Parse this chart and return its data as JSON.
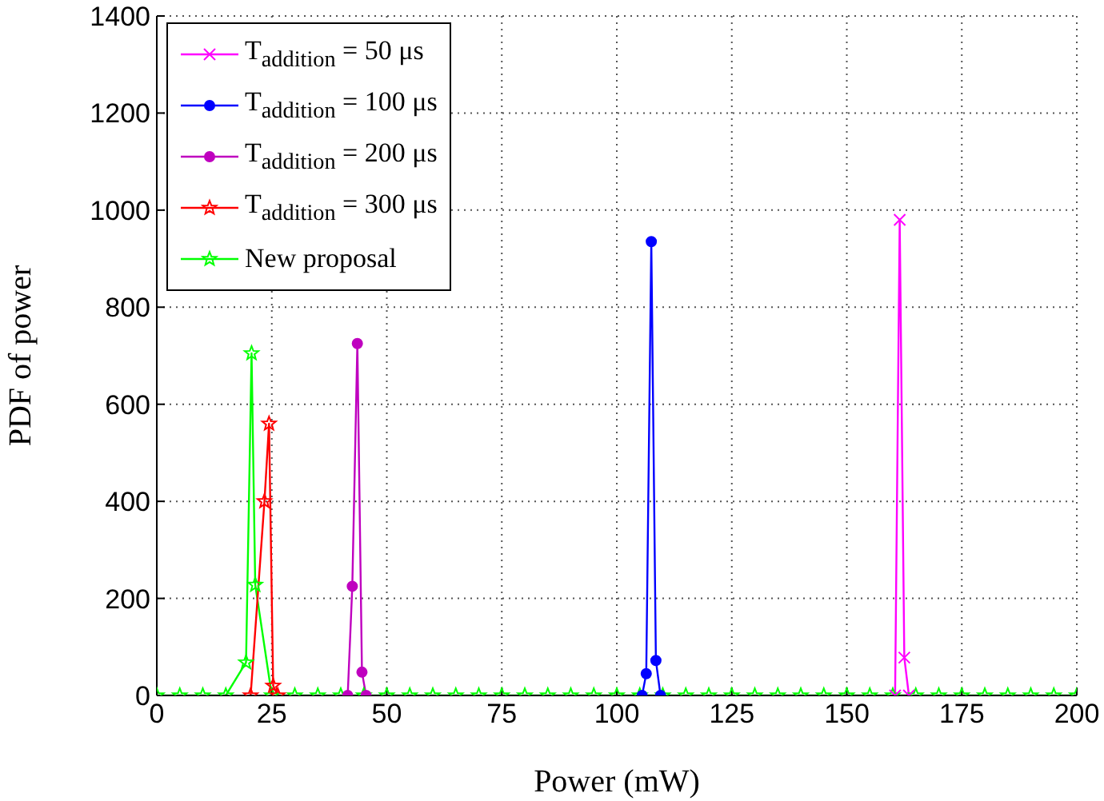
{
  "chart_data": {
    "type": "line",
    "xlabel": "Power (mW)",
    "ylabel": "PDF of power",
    "xlim": [
      0,
      200
    ],
    "ylim": [
      0,
      1400
    ],
    "xticks": [
      0,
      25,
      50,
      75,
      100,
      125,
      150,
      175,
      200
    ],
    "yticks": [
      0,
      200,
      400,
      600,
      800,
      1000,
      1200,
      1400
    ],
    "grid": true,
    "legend": "top left",
    "line_style": "solid",
    "series": [
      {
        "name": "T$_{addition}$ = 50 μs",
        "color": "#ff00ff",
        "marker": "cross",
        "x": [
          160.5,
          161.5,
          162.5,
          163.5
        ],
        "values": [
          0,
          980,
          78,
          0
        ]
      },
      {
        "name": "T$_{addition}$ = 100 μs",
        "color": "#0000ff",
        "marker": "circle",
        "x": [
          105.5,
          106.4,
          107.5,
          108.5,
          109.5
        ],
        "values": [
          0,
          45,
          935,
          72,
          0
        ]
      },
      {
        "name": "T$_{addition}$ = 200 μs",
        "color": "#bf00bf",
        "marker": "circle",
        "x": [
          41.5,
          42.5,
          43.6,
          44.6,
          45.5
        ],
        "values": [
          0,
          225,
          725,
          48,
          0
        ]
      },
      {
        "name": "T$_{addition}$ = 300 μs",
        "color": "#ff0000",
        "marker": "star",
        "x": [
          20.4,
          23.4,
          24.4,
          25.3,
          26.3
        ],
        "values": [
          0,
          400,
          560,
          20,
          0
        ]
      },
      {
        "name": "New proposal",
        "color": "#00ff00",
        "marker": "star",
        "x": [
          0,
          5,
          10,
          15,
          19.4,
          20.6,
          21.4,
          25,
          30,
          35,
          40,
          45,
          50,
          55,
          60,
          65,
          70,
          75,
          80,
          85,
          90,
          95,
          100,
          105,
          110,
          115,
          120,
          125,
          130,
          135,
          140,
          145,
          150,
          155,
          160,
          165,
          170,
          175,
          180,
          185,
          190,
          195,
          200
        ],
        "values": [
          0,
          0,
          0,
          0,
          68,
          705,
          228,
          0,
          0,
          0,
          0,
          0,
          0,
          0,
          0,
          0,
          0,
          0,
          0,
          0,
          0,
          0,
          0,
          0,
          0,
          0,
          0,
          0,
          0,
          0,
          0,
          0,
          0,
          0,
          0,
          0,
          0,
          0,
          0,
          0,
          0,
          0,
          0
        ]
      }
    ]
  }
}
